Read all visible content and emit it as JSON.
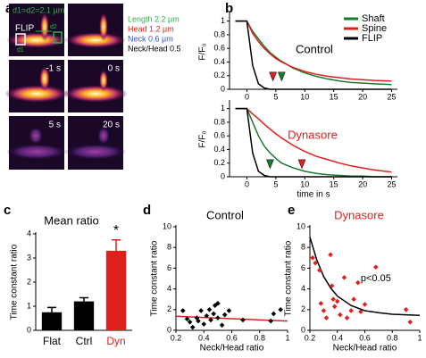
{
  "panels": [
    "a",
    "b",
    "c",
    "d",
    "e"
  ],
  "images": {
    "scale": "d1=d2=2.1 µm",
    "flip": "FLIP",
    "d1": "d1",
    "d2": "d2",
    "times": [
      "-1 s",
      "0 s",
      "5 s",
      "20 s"
    ],
    "measurements": [
      {
        "text": "Length 2.2 µm",
        "color": "#2fb24a"
      },
      {
        "text": "Head 1.2 µm",
        "color": "#e0201b"
      },
      {
        "text": "Neck 0.6 µm",
        "color": "#3a4fc8"
      },
      {
        "text": "Neck/Head 0.5",
        "color": "#000000"
      }
    ]
  },
  "chart_data": [
    {
      "type": "line",
      "title": "Control",
      "y_label": "F/F₀",
      "legend": "upper right",
      "x": [
        -2,
        -1,
        0,
        1,
        2,
        3,
        4,
        5,
        6,
        8,
        10,
        12,
        14,
        16,
        18,
        20,
        22,
        25
      ],
      "series": [
        {
          "name": "Shaft",
          "color": "#1a7a2e",
          "values": [
            1,
            1,
            1,
            0.85,
            0.74,
            0.63,
            0.54,
            0.47,
            0.41,
            0.31,
            0.24,
            0.19,
            0.15,
            0.12,
            0.1,
            0.09,
            0.08,
            0.07
          ]
        },
        {
          "name": "Spine",
          "color": "#e0201b",
          "values": [
            1,
            1,
            1,
            0.82,
            0.7,
            0.6,
            0.52,
            0.45,
            0.4,
            0.32,
            0.26,
            0.22,
            0.19,
            0.17,
            0.15,
            0.14,
            0.13,
            0.12
          ]
        },
        {
          "name": "FLIP",
          "color": "#000000",
          "values": [
            1,
            1,
            1,
            0.35,
            0.08,
            0.02,
            0,
            0,
            0,
            0,
            0,
            0,
            0,
            0,
            0,
            0,
            0,
            0
          ]
        }
      ],
      "markers": [
        {
          "color": "#e0201b",
          "x": 4.5
        },
        {
          "color": "#1a7a2e",
          "x": 6
        }
      ],
      "xlim": [
        -3,
        26
      ],
      "xticks": [
        0,
        5,
        10,
        15,
        20,
        25
      ],
      "ylim": [
        0,
        1.1
      ],
      "yticks": [
        0,
        0.2,
        0.4,
        0.6,
        0.8,
        1
      ]
    },
    {
      "type": "line",
      "title": "Dynasore",
      "title_color": "#e0201b",
      "y_label": "F/F₀",
      "x_label": "time in s",
      "x": [
        -2,
        -1,
        0,
        1,
        2,
        3,
        4,
        5,
        6,
        8,
        10,
        12,
        14,
        16,
        18,
        20,
        22,
        25
      ],
      "series": [
        {
          "name": "Shaft",
          "color": "#1a7a2e",
          "values": [
            1,
            1,
            1,
            0.8,
            0.6,
            0.45,
            0.35,
            0.27,
            0.2,
            0.13,
            0.08,
            0.05,
            0.03,
            0.02,
            0.01,
            0.01,
            0,
            0
          ]
        },
        {
          "name": "Spine",
          "color": "#e0201b",
          "values": [
            1,
            1,
            1,
            0.92,
            0.85,
            0.77,
            0.7,
            0.63,
            0.57,
            0.46,
            0.37,
            0.3,
            0.25,
            0.2,
            0.16,
            0.13,
            0.1,
            0.07
          ]
        },
        {
          "name": "FLIP",
          "color": "#000000",
          "values": [
            1,
            1,
            1,
            0.35,
            0.08,
            0.02,
            0,
            0,
            0,
            0,
            0,
            0,
            0,
            0,
            0,
            0,
            0,
            0
          ]
        }
      ],
      "markers": [
        {
          "color": "#1a7a2e",
          "x": 4
        },
        {
          "color": "#e0201b",
          "x": 9.5
        }
      ],
      "xlim": [
        -3,
        26
      ],
      "xticks": [
        0,
        5,
        10,
        15,
        20,
        25
      ],
      "ylim": [
        0,
        1.1
      ],
      "yticks": [
        0,
        0.2,
        0.4,
        0.6,
        0.8,
        1
      ]
    },
    {
      "type": "bar",
      "title": "Mean ratio",
      "y_label": "Time constant ratio",
      "categories": [
        "Flat",
        "Ctrl",
        "Dyn"
      ],
      "values": [
        0.75,
        1.2,
        3.3
      ],
      "errors": [
        0.2,
        0.15,
        0.45
      ],
      "colors": [
        "#000000",
        "#000000",
        "#e0201b"
      ],
      "annotation": "*",
      "ylim": [
        0,
        4
      ],
      "yticks": [
        0,
        1,
        2,
        3,
        4
      ]
    },
    {
      "type": "scatter",
      "title": "Control",
      "y_label": "Time constant ratio",
      "x_label": "Neck/Head ratio",
      "color": "#000000",
      "x": [
        0.25,
        0.28,
        0.3,
        0.32,
        0.35,
        0.36,
        0.38,
        0.4,
        0.42,
        0.44,
        0.45,
        0.47,
        0.48,
        0.5,
        0.5,
        0.53,
        0.55,
        0.58,
        0.68,
        0.88,
        0.9,
        0.95
      ],
      "values": [
        1.9,
        1.1,
        0.8,
        0.3,
        1.2,
        0.9,
        1.9,
        0.6,
        1.4,
        2,
        1,
        1.6,
        2.4,
        2.6,
        1.2,
        0.5,
        1.5,
        1.9,
        1,
        0.9,
        1.6,
        2
      ],
      "fit": {
        "color": "#e0201b",
        "x": [
          0.2,
          1
        ],
        "values": [
          1.35,
          0.9
        ]
      },
      "xlim": [
        0.2,
        1
      ],
      "xticks": [
        0.2,
        0.4,
        0.6,
        0.8,
        1
      ],
      "ylim": [
        0,
        10
      ],
      "yticks": [
        0,
        2,
        4,
        6,
        8,
        10
      ]
    },
    {
      "type": "scatter",
      "title": "Dynasore",
      "title_color": "#e0201b",
      "y_label": "Time constant ratio",
      "x_label": "Neck/Head ratio",
      "color": "#e0201b",
      "x": [
        0.22,
        0.24,
        0.27,
        0.28,
        0.3,
        0.32,
        0.35,
        0.36,
        0.37,
        0.38,
        0.4,
        0.42,
        0.45,
        0.47,
        0.5,
        0.52,
        0.55,
        0.57,
        0.6,
        0.68,
        0.9,
        0.93
      ],
      "values": [
        7,
        6.5,
        5.8,
        2.6,
        1.9,
        1.2,
        7.3,
        4.3,
        3,
        2.3,
        2.8,
        1.5,
        5.1,
        1.2,
        1.9,
        3,
        4.6,
        1.8,
        2.5,
        6.1,
        2,
        0.8
      ],
      "fit": {
        "color": "#000000",
        "x": [
          0.2,
          0.25,
          0.3,
          0.35,
          0.4,
          0.5,
          0.6,
          0.7,
          0.8,
          1
        ],
        "values": [
          9,
          6.8,
          5.2,
          4.1,
          3.3,
          2.4,
          1.9,
          1.7,
          1.55,
          1.45
        ]
      },
      "annotation": "p<0.05",
      "xlim": [
        0.2,
        1
      ],
      "xticks": [
        0.2,
        0.4,
        0.6,
        0.8,
        1
      ],
      "ylim": [
        0,
        10
      ],
      "yticks": [
        0,
        2,
        4,
        6,
        8,
        10
      ]
    }
  ]
}
